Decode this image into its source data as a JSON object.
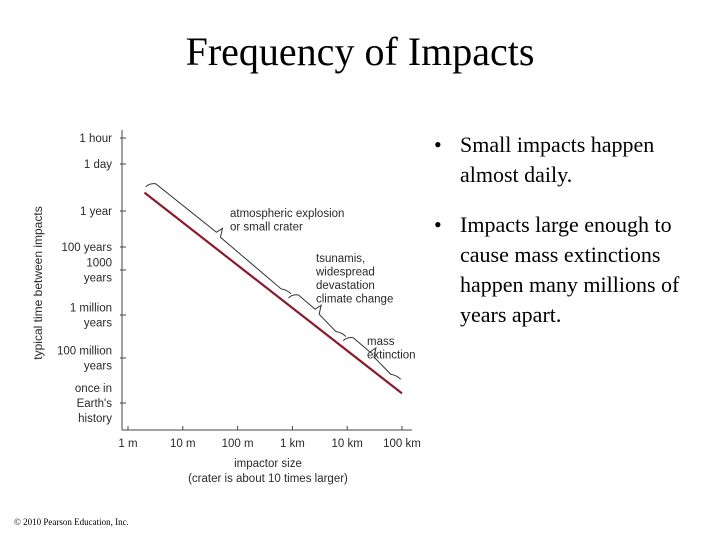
{
  "slide": {
    "title": "Frequency of Impacts",
    "copyright": "© 2010 Pearson Education, Inc."
  },
  "bullets": [
    {
      "marker": "•",
      "text": "Small impacts happen almost daily."
    },
    {
      "marker": "•",
      "text": "Impacts large enough to cause mass extinctions happen many millions of years apart."
    }
  ],
  "chart_data": {
    "type": "line",
    "title": "",
    "xlabel": [
      "impactor size",
      "(crater is about 10 times larger)"
    ],
    "ylabel": "typical time between impacts",
    "x_scale": "log",
    "y_scale": "log",
    "x_ticks": [
      {
        "value": 1,
        "label": [
          "1 m"
        ]
      },
      {
        "value": 10,
        "label": [
          "10 m"
        ]
      },
      {
        "value": 100,
        "label": [
          "100 m"
        ]
      },
      {
        "value": 1000,
        "label": [
          "1 km"
        ]
      },
      {
        "value": 10000,
        "label": [
          "10 km"
        ]
      },
      {
        "value": 100000,
        "label": [
          "100 km"
        ]
      }
    ],
    "y_ticks": [
      {
        "value": 0.000114,
        "label": [
          "1 hour"
        ]
      },
      {
        "value": 0.00274,
        "label": [
          "1 day"
        ]
      },
      {
        "value": 1,
        "label": [
          "1 year"
        ]
      },
      {
        "value": 100,
        "label": [
          "100 years"
        ]
      },
      {
        "value": 1000,
        "label": [
          "1000",
          "years"
        ]
      },
      {
        "value": 1000000,
        "label": [
          "1 million",
          "years"
        ]
      },
      {
        "value": 100000000,
        "label": [
          "100 million",
          "years"
        ]
      },
      {
        "value": 4500000000,
        "label": [
          "once in",
          "Earth's",
          "history"
        ]
      }
    ],
    "series": [
      {
        "color": "#8b1a2b",
        "points": [
          {
            "x": 2,
            "y": 0.1
          },
          {
            "x": 100000,
            "y": 2000000000
          }
        ]
      }
    ],
    "annotations": [
      {
        "text": [
          "atmospheric explosion",
          "or small crater"
        ],
        "x_range": [
          2.5,
          800
        ]
      },
      {
        "text": [
          "tsunamis,",
          "widespread",
          "devastation",
          "climate change"
        ],
        "x_range": [
          1000,
          8000
        ]
      },
      {
        "text": [
          "mass",
          "extinction"
        ],
        "x_range": [
          10000,
          80000
        ]
      }
    ],
    "line_color": "#8b1a2b"
  }
}
